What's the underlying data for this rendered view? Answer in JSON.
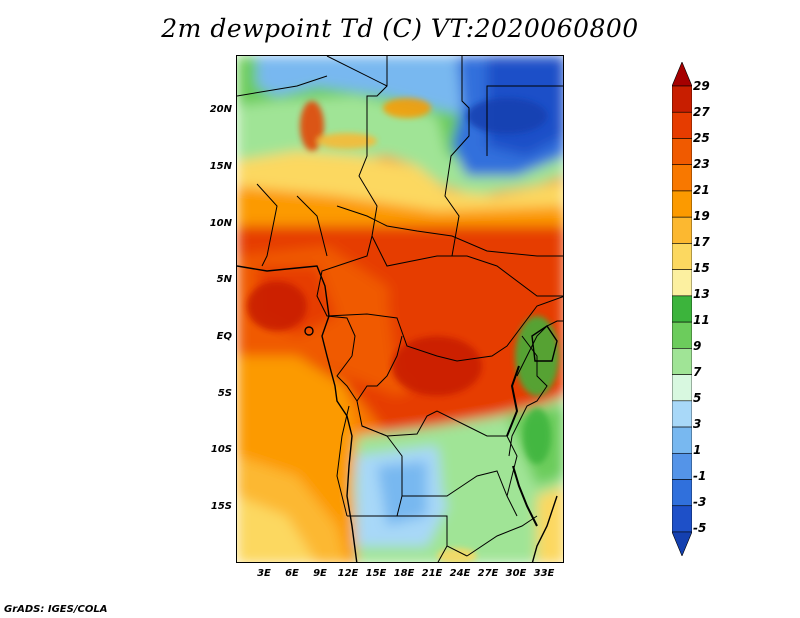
{
  "title": "2m dewpoint Td (C) VT:2020060800",
  "footer": "GrADS: IGES/COLA",
  "lat_labels": [
    "20N",
    "15N",
    "10N",
    "5N",
    "EQ",
    "5S",
    "10S",
    "15S"
  ],
  "lon_labels": [
    "3E",
    "6E",
    "9E",
    "12E",
    "15E",
    "18E",
    "21E",
    "24E",
    "27E",
    "30E",
    "33E"
  ],
  "colorbar": {
    "labels": [
      "29",
      "27",
      "25",
      "23",
      "21",
      "19",
      "17",
      "15",
      "13",
      "11",
      "9",
      "7",
      "5",
      "3",
      "1",
      "-1",
      "-3",
      "-5"
    ],
    "colors": [
      "#a50000",
      "#c81e00",
      "#e63c00",
      "#f05a00",
      "#f87800",
      "#fc9a00",
      "#fcb830",
      "#fcd860",
      "#fcf0a0",
      "#3cb43c",
      "#6ccc5c",
      "#a0e496",
      "#d8f8e0",
      "#a8d8f8",
      "#78b8f0",
      "#5494e8",
      "#3070dc",
      "#1e50c8",
      "#1440b0"
    ]
  }
}
